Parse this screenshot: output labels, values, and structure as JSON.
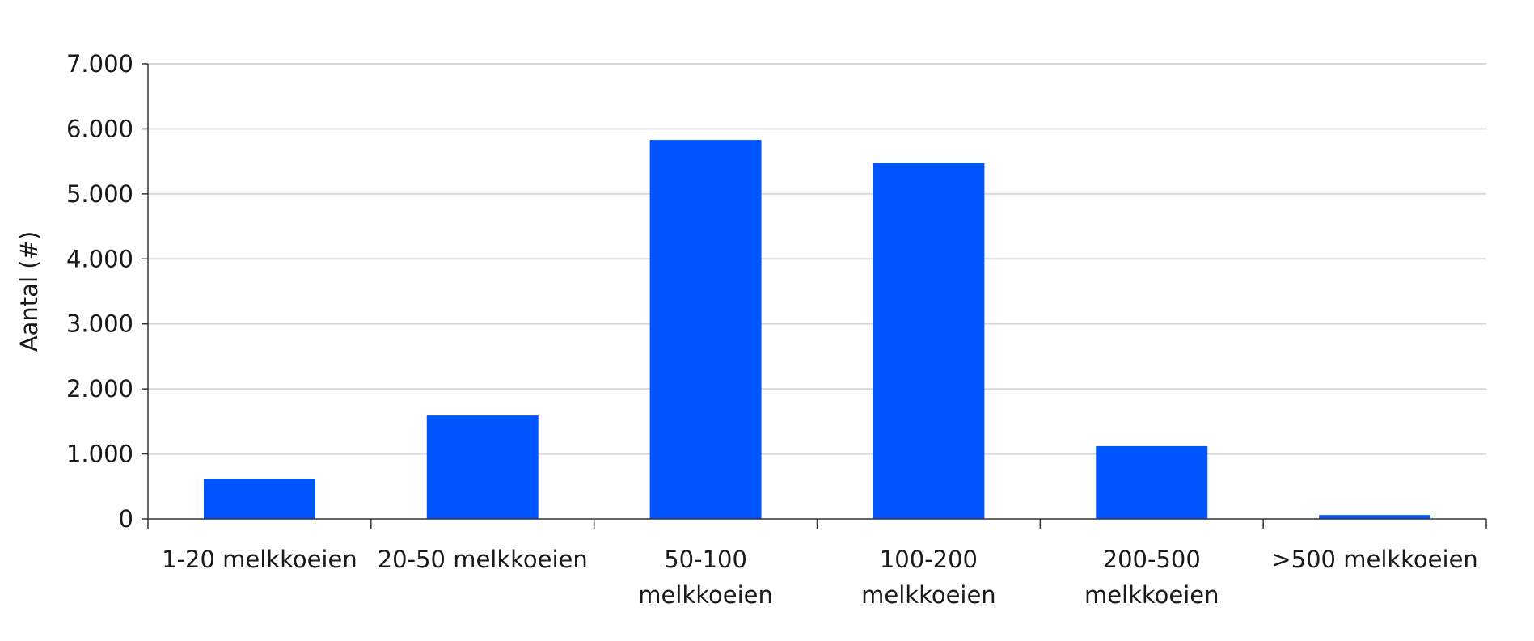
{
  "chart_data": {
    "type": "bar",
    "title": "",
    "xlabel": "",
    "ylabel": "Aantal (#)",
    "ylim": [
      0,
      7000
    ],
    "yticks": [
      {
        "value": 0,
        "label": "0"
      },
      {
        "value": 1000,
        "label": "1.000"
      },
      {
        "value": 2000,
        "label": "2.000"
      },
      {
        "value": 3000,
        "label": "3.000"
      },
      {
        "value": 4000,
        "label": "4.000"
      },
      {
        "value": 5000,
        "label": "5.000"
      },
      {
        "value": 6000,
        "label": "6.000"
      },
      {
        "value": 7000,
        "label": "7.000"
      }
    ],
    "categories": [
      [
        "1-20 melkkoeien"
      ],
      [
        "20-50 melkkoeien"
      ],
      [
        "50-100",
        "melkkoeien"
      ],
      [
        "100-200",
        "melkkoeien"
      ],
      [
        "200-500",
        "melkkoeien"
      ],
      [
        ">500 melkkoeien"
      ]
    ],
    "values": [
      620,
      1590,
      5830,
      5470,
      1120,
      60
    ],
    "grid": true,
    "legend": "none",
    "colors": {
      "bar": "#0055ff",
      "grid": "#d9d9d9",
      "axis": "#333333"
    }
  }
}
